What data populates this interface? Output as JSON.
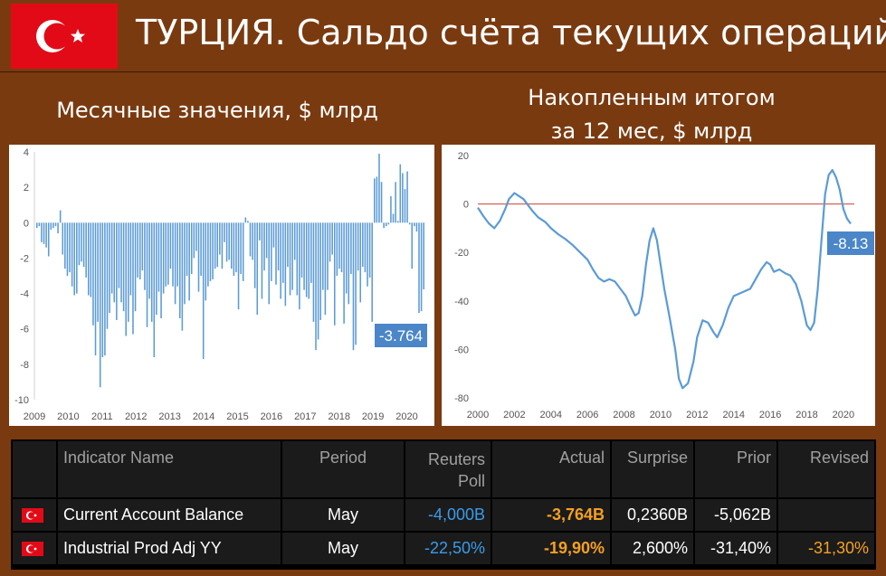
{
  "header": {
    "title": "ТУРЦИЯ. Сальдо счёта текущих операций",
    "flag_color": "#e30a17"
  },
  "subtitles": {
    "left": "Месячные значения, $ млрд",
    "right_line1": "Накопленным итогом",
    "right_line2": "за 12 мес, $ млрд"
  },
  "chart_data": [
    {
      "type": "bar",
      "title": "Месячные значения, $ млрд",
      "x_tick_labels": [
        "2009",
        "2010",
        "2011",
        "2012",
        "2013",
        "2014",
        "2015",
        "2016",
        "2017",
        "2018",
        "2019",
        "2020"
      ],
      "y_tick_labels": [
        "4",
        "2",
        "0",
        "-2",
        "-4",
        "-6",
        "-8",
        "-10"
      ],
      "ylim": [
        -10,
        4
      ],
      "x_start": 2009.0,
      "x_end": 2020.6,
      "annotation": "-3.764",
      "bar_color": "#5b9bd5",
      "values": [
        -0.3,
        -0.2,
        -1.1,
        -1.2,
        -1.4,
        -1.9,
        -0.4,
        -0.3,
        -0.2,
        -0.6,
        0.7,
        -1.8,
        -2.6,
        -3.0,
        -2.8,
        -3.6,
        -4.1,
        -4.0,
        -2.4,
        -2.2,
        -2.5,
        -3.1,
        -4.1,
        -4.2,
        -5.8,
        -7.5,
        -5.6,
        -9.3,
        -7.6,
        -7.5,
        -6.0,
        -5.1,
        -4.0,
        -4.5,
        -5.5,
        -3.7,
        -4.5,
        -5.0,
        -6.4,
        -5.6,
        -4.1,
        -6.3,
        -5.0,
        -3.1,
        -3.2,
        -2.7,
        -3.8,
        -5.9,
        -4.3,
        -5.6,
        -7.6,
        -5.2,
        -3.9,
        -5.4,
        -4.0,
        -3.6,
        -3.5,
        -2.6,
        -3.6,
        -4.6,
        -3.6,
        -5.4,
        -6.1,
        -4.6,
        -3.0,
        -4.4,
        -2.9,
        -2.0,
        -1.6,
        -3.9,
        -3.0,
        -7.7,
        -4.4,
        -3.6,
        -3.3,
        -3.2,
        -2.6,
        -2.5,
        -1.8,
        -2.6,
        -1.1,
        -2.2,
        -2.1,
        -2.6,
        -3.0,
        -2.8,
        -4.9,
        -2.9,
        -3.3,
        0.3,
        0.1,
        -1.9,
        -2.1,
        -3.7,
        -5.2,
        -1.0,
        -4.3,
        -2.7,
        -2.0,
        -4.6,
        -3.3,
        -1.4,
        -3.5,
        -2.7,
        -4.3,
        -3.4,
        -4.7,
        -2.5,
        -4.1,
        -3.8,
        -2.1,
        -4.1,
        -4.9,
        -3.1,
        -3.8,
        -4.2,
        -4.3,
        -3.4,
        -5.6,
        -7.2,
        -6.6,
        -5.5,
        -3.8,
        -5.2,
        -3.8,
        -2.2,
        -1.8,
        -5.8,
        -3.0,
        -2.6,
        -2.8,
        -5.7,
        -4.0,
        -4.6,
        -2.9,
        -7.2,
        -6.9,
        -2.7,
        -4.5,
        -2.5,
        -2.8,
        -3.6,
        -3.1,
        -5.6,
        2.5,
        2.6,
        3.9,
        2.3,
        -0.3,
        -0.2,
        -0.1,
        1.5,
        0.5,
        2.3,
        0.1,
        3.3,
        2.8,
        1.9,
        2.9,
        -0.1,
        -2.6,
        -0.2,
        -0.5,
        -5.1,
        -5.0,
        -3.764
      ]
    },
    {
      "type": "line",
      "title": "Накопленным итогом за 12 мес, $ млрд",
      "x_tick_labels": [
        "2000",
        "2002",
        "2004",
        "2006",
        "2008",
        "2010",
        "2012",
        "2014",
        "2016",
        "2018",
        "2020"
      ],
      "y_tick_labels": [
        "20",
        "0",
        "-20",
        "-40",
        "-60",
        "-80"
      ],
      "ylim": [
        -80,
        20
      ],
      "annotation": "-8.13",
      "line_color": "#5b9bd5",
      "zero_line_color": "#d04030",
      "x": [
        2000.0,
        2000.3,
        2000.6,
        2000.9,
        2001.2,
        2001.5,
        2001.7,
        2002.0,
        2002.2,
        2002.5,
        2002.8,
        2003.0,
        2003.3,
        2003.7,
        2004.0,
        2004.4,
        2004.8,
        2005.2,
        2005.6,
        2006.0,
        2006.3,
        2006.6,
        2006.9,
        2007.2,
        2007.5,
        2007.8,
        2008.1,
        2008.4,
        2008.6,
        2008.8,
        2009.0,
        2009.2,
        2009.4,
        2009.6,
        2009.8,
        2010.0,
        2010.2,
        2010.5,
        2010.8,
        2011.0,
        2011.2,
        2011.5,
        2011.8,
        2012.0,
        2012.3,
        2012.6,
        2012.9,
        2013.1,
        2013.4,
        2013.7,
        2014.0,
        2014.3,
        2014.6,
        2014.9,
        2015.2,
        2015.5,
        2015.8,
        2016.0,
        2016.2,
        2016.5,
        2016.8,
        2017.1,
        2017.4,
        2017.7,
        2018.0,
        2018.2,
        2018.4,
        2018.6,
        2018.8,
        2019.0,
        2019.2,
        2019.4,
        2019.6,
        2019.8,
        2020.0,
        2020.2,
        2020.4
      ],
      "values": [
        -1.5,
        -5.0,
        -8.0,
        -10.0,
        -7.0,
        -2.0,
        2.0,
        4.5,
        3.5,
        2.0,
        -1.0,
        -3.0,
        -5.5,
        -7.5,
        -10.0,
        -12.5,
        -14.5,
        -17.0,
        -20.0,
        -23.0,
        -27.0,
        -30.5,
        -32.0,
        -31.0,
        -32.0,
        -35.0,
        -38.0,
        -43.0,
        -46.0,
        -45.0,
        -38.0,
        -25.0,
        -15.0,
        -10.0,
        -15.0,
        -25.0,
        -35.0,
        -47.0,
        -60.0,
        -72.0,
        -76.0,
        -74.0,
        -65.0,
        -55.0,
        -48.0,
        -49.0,
        -53.0,
        -55.0,
        -50.0,
        -43.0,
        -38.0,
        -37.0,
        -36.0,
        -35.0,
        -31.0,
        -27.0,
        -24.0,
        -25.0,
        -28.0,
        -27.0,
        -28.5,
        -29.5,
        -33.0,
        -40.0,
        -50.0,
        -52.0,
        -49.0,
        -35.0,
        -15.0,
        4.0,
        12.0,
        14.0,
        11.0,
        6.0,
        -2.0,
        -6.0,
        -8.13
      ]
    }
  ],
  "table": {
    "columns": [
      "Indicator Name",
      "Period",
      "Reuters Poll",
      "Actual",
      "Surprise",
      "Prior",
      "Revised"
    ],
    "rows": [
      {
        "name": "Current Account Balance",
        "period": "May",
        "poll": "-4,000B",
        "actual": "-3,764B",
        "surprise": "0,2360B",
        "prior": "-5,062B",
        "revised": ""
      },
      {
        "name": "Industrial Prod Adj YY",
        "period": "May",
        "poll": "-22,50%",
        "actual": "-19,90%",
        "surprise": "2,600%",
        "prior": "-31,40%",
        "revised": "-31,30%"
      }
    ]
  }
}
